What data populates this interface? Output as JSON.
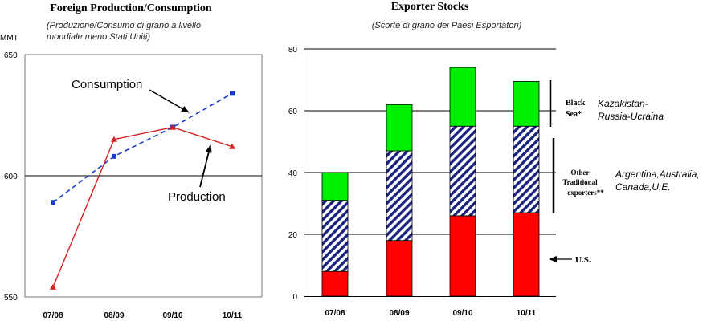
{
  "chart_data": [
    {
      "type": "line",
      "title": "Foreign Production/Consumption",
      "subtitle_lines": [
        "(Produzione/Consumo di grano a livello",
        "mondiale meno Stati Uniti)"
      ],
      "ylabel": "MMT",
      "ylim": [
        550,
        650
      ],
      "yticks": [
        550,
        600,
        650
      ],
      "categories": [
        "07/08",
        "08/09",
        "09/10",
        "10/11"
      ],
      "grid": "horizontal",
      "series": [
        {
          "name": "Consumption",
          "color": "#1a3cc8",
          "style": "dashed",
          "marker": "square",
          "values": [
            589,
            608,
            620,
            634
          ]
        },
        {
          "name": "Production",
          "color": "#d42020",
          "style": "solid",
          "marker": "triangle",
          "values": [
            554,
            615,
            620,
            612
          ]
        }
      ]
    },
    {
      "type": "bar",
      "stacked": true,
      "title": "Exporter Stocks",
      "subtitle": "(Scorte di grano dei Paesi Esportatori)",
      "ylim": [
        0,
        80
      ],
      "yticks": [
        0,
        20,
        40,
        60,
        80
      ],
      "categories": [
        "07/08",
        "08/09",
        "09/10",
        "10/11"
      ],
      "grid": "horizontal",
      "series": [
        {
          "name": "U.S.",
          "color": "#ff0000",
          "pattern": "solid",
          "values": [
            8,
            18,
            26,
            27
          ]
        },
        {
          "name": "Other Traditional exporters**",
          "color": "#1a237e",
          "pattern": "diagonal-stripes",
          "values": [
            23,
            29,
            29,
            28
          ]
        },
        {
          "name": "Black Sea*",
          "color": "#00ee00",
          "pattern": "solid",
          "values": [
            9,
            15,
            19,
            14.5
          ]
        }
      ],
      "annotations": {
        "black_sea_label_lines": [
          "Black",
          "Sea*"
        ],
        "black_sea_countries_lines": [
          "Kazakistan-",
          "Russia-Ucraina"
        ],
        "other_label_lines": [
          "Other",
          "Traditional",
          "exporters**"
        ],
        "other_countries_lines": [
          "Argentina,Australia,",
          "Canada,U.E."
        ],
        "us_label": "U.S."
      }
    }
  ]
}
